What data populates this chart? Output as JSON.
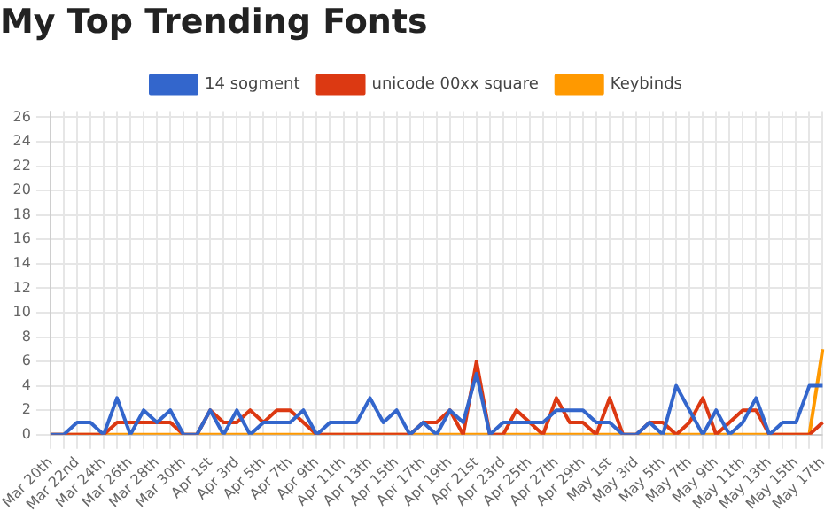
{
  "chart_data": {
    "type": "line",
    "title": "My Top Trending Fonts",
    "categories": [
      "Mar 20th",
      null,
      "Mar 22nd",
      null,
      "Mar 24th",
      null,
      "Mar 26th",
      null,
      "Mar 28th",
      null,
      "Mar 30th",
      null,
      "Apr 1st",
      null,
      "Apr 3rd",
      null,
      "Apr 5th",
      null,
      "Apr 7th",
      null,
      "Apr 9th",
      null,
      "Apr 11th",
      null,
      "Apr 13th",
      null,
      "Apr 15th",
      null,
      "Apr 17th",
      null,
      "Apr 19th",
      null,
      "Apr 21st",
      null,
      "Apr 23rd",
      null,
      "Apr 25th",
      null,
      "Apr 27th",
      null,
      "Apr 29th",
      null,
      "May 1st",
      null,
      "May 3rd",
      null,
      "May 5th",
      null,
      "May 7th",
      null,
      "May 9th",
      null,
      "May 11th",
      null,
      "May 13th",
      null,
      "May 15th",
      null,
      "May 17th"
    ],
    "series": [
      {
        "name": "14 sogment",
        "color": "#3366cc",
        "values": [
          0,
          0,
          1,
          1,
          0,
          3,
          0,
          2,
          1,
          2,
          0,
          0,
          2,
          0,
          2,
          0,
          1,
          1,
          1,
          2,
          0,
          1,
          1,
          1,
          3,
          1,
          2,
          0,
          1,
          0,
          2,
          1,
          5,
          0,
          1,
          1,
          1,
          1,
          2,
          2,
          2,
          1,
          1,
          0,
          0,
          1,
          0,
          4,
          2,
          0,
          2,
          0,
          1,
          3,
          0,
          1,
          1,
          4,
          4
        ]
      },
      {
        "name": "unicode 00xx square",
        "color": "#dc3912",
        "values": [
          0,
          0,
          0,
          0,
          0,
          1,
          1,
          1,
          1,
          1,
          0,
          0,
          2,
          1,
          1,
          2,
          1,
          2,
          2,
          1,
          0,
          0,
          0,
          0,
          0,
          0,
          0,
          0,
          1,
          1,
          2,
          0,
          6,
          0,
          0,
          2,
          1,
          0,
          3,
          1,
          1,
          0,
          3,
          0,
          0,
          1,
          1,
          0,
          1,
          3,
          0,
          1,
          2,
          2,
          0,
          0,
          0,
          0,
          1
        ]
      },
      {
        "name": "Keybinds",
        "color": "#ff9900",
        "values": [
          0,
          0,
          0,
          0,
          0,
          0,
          0,
          0,
          0,
          0,
          0,
          0,
          0,
          0,
          0,
          0,
          0,
          0,
          0,
          0,
          0,
          0,
          0,
          0,
          0,
          0,
          0,
          0,
          0,
          0,
          0,
          0,
          0,
          0,
          0,
          0,
          0,
          0,
          0,
          0,
          0,
          0,
          0,
          0,
          0,
          0,
          0,
          0,
          0,
          0,
          0,
          0,
          0,
          0,
          0,
          0,
          0,
          0,
          7
        ]
      }
    ],
    "ylim": [
      0,
      26.5
    ],
    "yticks": [
      0,
      2,
      4,
      6,
      8,
      10,
      12,
      14,
      16,
      18,
      20,
      22,
      24,
      26
    ],
    "grid": true,
    "legend": "top",
    "marker": "none",
    "line_style": "solid"
  }
}
